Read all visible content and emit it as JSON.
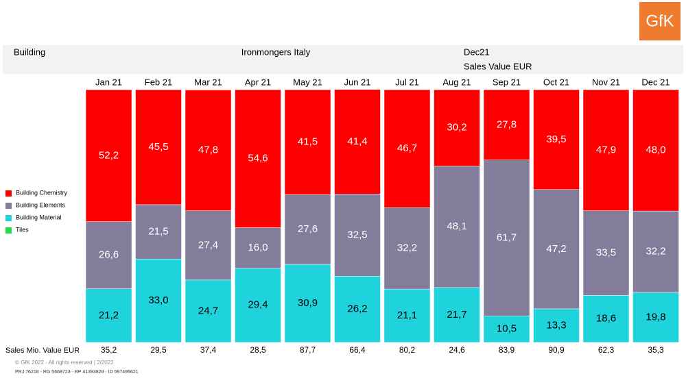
{
  "header": {
    "segment": "Building",
    "channel": "Ironmongers Italy",
    "period": "Dec21",
    "measure": "Sales Value EUR"
  },
  "logo": "GfK",
  "chart_data": {
    "type": "bar",
    "stacked": true,
    "categories": [
      "Jan 21",
      "Feb 21",
      "Mar 21",
      "Apr 21",
      "May 21",
      "Jun 21",
      "Jul 21",
      "Aug 21",
      "Sep 21",
      "Oct 21",
      "Nov 21",
      "Dec 21"
    ],
    "ylim": [
      0,
      100
    ],
    "legend": "left",
    "series": [
      {
        "name": "Building Chemistry",
        "color": "#ff0000",
        "values": [
          52.2,
          45.5,
          47.8,
          54.6,
          41.5,
          41.4,
          46.7,
          30.2,
          27.8,
          39.5,
          47.9,
          48.0
        ],
        "value_labels": [
          "52,2",
          "45,5",
          "47,8",
          "54,6",
          "41,5",
          "41,4",
          "46,7",
          "30,2",
          "27,8",
          "39,5",
          "47,9",
          "48,0"
        ]
      },
      {
        "name": "Building Elements",
        "color": "#837d9b",
        "values": [
          26.6,
          21.5,
          27.4,
          16.0,
          27.6,
          32.5,
          32.2,
          48.1,
          61.7,
          47.2,
          33.5,
          32.2
        ],
        "value_labels": [
          "26,6",
          "21,5",
          "27,4",
          "16,0",
          "27,6",
          "32,5",
          "32,2",
          "48,1",
          "61,7",
          "47,2",
          "33,5",
          "32,2"
        ]
      },
      {
        "name": "Building Material",
        "color": "#1fd3dc",
        "values": [
          21.2,
          33.0,
          24.7,
          29.4,
          30.9,
          26.2,
          21.1,
          21.7,
          10.5,
          13.3,
          18.6,
          19.8
        ],
        "value_labels": [
          "21,2",
          "33,0",
          "24,7",
          "29,4",
          "30,9",
          "26,2",
          "21,1",
          "21,7",
          "10,5",
          "13,3",
          "18,6",
          "19,8"
        ]
      },
      {
        "name": "Tiles",
        "color": "#22dd44",
        "values": [
          0,
          0,
          0,
          0,
          0,
          0,
          0,
          0,
          0,
          0,
          0,
          0
        ]
      }
    ]
  },
  "totals": {
    "label": "Sales Mio. Value EUR",
    "values": [
      "35,2",
      "29,5",
      "37,4",
      "28,5",
      "87,7",
      "66,4",
      "80,2",
      "24,6",
      "83,9",
      "90,9",
      "62,3",
      "35,3"
    ]
  },
  "footer": {
    "copyright": "© GfK 2022 - All rights reserved | 2/2022",
    "ids": "PRJ 76218 - RG 5668723 - RP 41393828 - ID 597495621"
  }
}
